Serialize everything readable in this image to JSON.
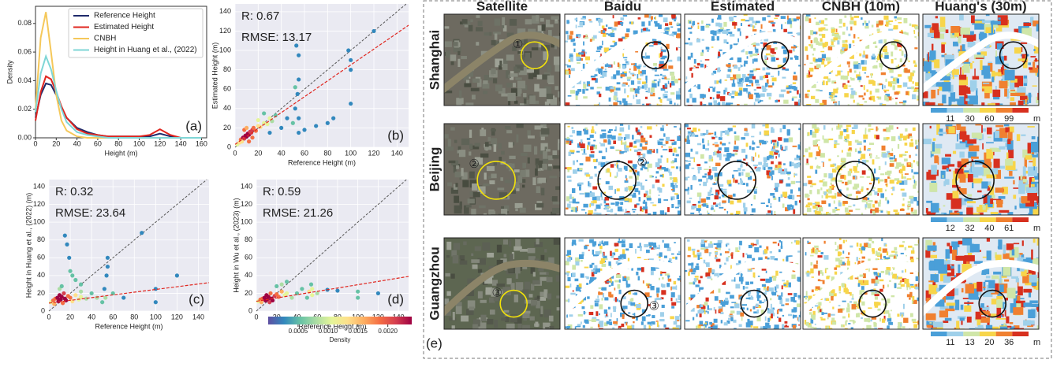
{
  "chart_data": [
    {
      "type": "line",
      "label": "(a)",
      "x_label": "Height (m)",
      "y_label": "Density",
      "x": [
        0,
        5,
        10,
        15,
        20,
        25,
        30,
        40,
        50,
        60,
        70,
        80,
        90,
        100,
        110,
        120,
        130,
        140,
        150,
        160
      ],
      "series": [
        {
          "name": "Reference Height",
          "color": "#1f2a6b",
          "values": [
            0.014,
            0.03,
            0.038,
            0.037,
            0.03,
            0.021,
            0.014,
            0.007,
            0.004,
            0.002,
            0.001,
            0.001,
            0.001,
            0.001,
            0.001,
            0.003,
            0.001,
            0,
            0,
            0
          ]
        },
        {
          "name": "Estimated Height",
          "color": "#e0261f",
          "values": [
            0.012,
            0.032,
            0.043,
            0.041,
            0.032,
            0.022,
            0.014,
            0.006,
            0.003,
            0.002,
            0.001,
            0.001,
            0.001,
            0.001,
            0.002,
            0.006,
            0.002,
            0,
            0,
            0
          ]
        },
        {
          "name": "CNBH",
          "color": "#f5c85a",
          "values": [
            0.02,
            0.07,
            0.088,
            0.06,
            0.03,
            0.012,
            0.005,
            0.001,
            0,
            0,
            0,
            0,
            0,
            0,
            0,
            0,
            0,
            0,
            0,
            0
          ]
        },
        {
          "name": "Height in Huang et al., (2022)",
          "color": "#7fd6d6",
          "values": [
            0.018,
            0.045,
            0.057,
            0.048,
            0.033,
            0.02,
            0.011,
            0.004,
            0.002,
            0.001,
            0,
            0,
            0,
            0,
            0,
            0,
            0,
            0,
            0,
            0
          ]
        }
      ],
      "xlim": [
        0,
        165
      ],
      "xticks": [
        0,
        20,
        40,
        60,
        80,
        100,
        120,
        140,
        160
      ],
      "ylim": [
        0,
        0.092
      ],
      "yticks": [
        {
          "value": 0,
          "label": "0.00"
        },
        {
          "value": 0.02,
          "label": "0.02"
        },
        {
          "value": 0.04,
          "label": "0.04"
        },
        {
          "value": 0.06,
          "label": "0.06"
        },
        {
          "value": 0.08,
          "label": "0.08"
        }
      ],
      "legend": "upper right"
    },
    {
      "type": "scatter",
      "label": "(b)",
      "x_label": "Reference Height (m)",
      "y_label": "Estimated Height (m)",
      "annotations": [
        "R: 0.67",
        "RMSE: 13.17"
      ],
      "x": [
        2,
        4,
        5,
        6,
        7,
        8,
        9,
        10,
        11,
        12,
        13,
        14,
        15,
        16,
        18,
        20,
        22,
        25,
        28,
        30,
        32,
        35,
        8,
        10,
        12,
        15,
        20,
        25,
        50,
        52,
        54,
        55,
        55,
        53,
        55,
        40,
        45,
        60,
        70,
        80,
        100,
        100,
        98,
        100,
        120,
        85,
        55,
        30,
        52
      ],
      "y": [
        3,
        5,
        8,
        6,
        10,
        9,
        12,
        11,
        14,
        13,
        16,
        15,
        18,
        20,
        17,
        22,
        21,
        25,
        24,
        30,
        27,
        33,
        18,
        20,
        6,
        10,
        28,
        35,
        25,
        40,
        55,
        70,
        95,
        105,
        30,
        20,
        30,
        18,
        22,
        25,
        80,
        90,
        100,
        45,
        120,
        30,
        15,
        15,
        62
      ],
      "fit_line": {
        "color": "#e0261f",
        "x": [
          0,
          150
        ],
        "y": [
          3,
          126
        ]
      },
      "xlim": [
        0,
        150
      ],
      "xticks": [
        0,
        20,
        40,
        60,
        80,
        100,
        120,
        140
      ],
      "ylim": [
        0,
        148
      ],
      "yticks": [
        0,
        20,
        40,
        60,
        80,
        100,
        120,
        140
      ],
      "grid": true
    },
    {
      "type": "scatter",
      "label": "(c)",
      "x_label": "Reference Height (m)",
      "y_label": "Height in Huang et al., (2022) (m)",
      "annotations": [
        "R: 0.32",
        "RMSE: 23.64"
      ],
      "x": [
        2,
        4,
        5,
        6,
        8,
        9,
        10,
        11,
        12,
        13,
        14,
        15,
        16,
        18,
        20,
        22,
        25,
        28,
        30,
        35,
        15,
        17,
        19,
        20,
        22,
        25,
        30,
        10,
        12,
        50,
        52,
        54,
        55,
        55,
        53,
        40,
        45,
        60,
        87,
        100,
        100,
        120,
        70,
        30
      ],
      "y": [
        10,
        12,
        8,
        14,
        15,
        11,
        18,
        13,
        16,
        9,
        20,
        14,
        12,
        17,
        15,
        11,
        18,
        13,
        16,
        14,
        85,
        75,
        60,
        45,
        40,
        35,
        30,
        25,
        28,
        10,
        25,
        40,
        50,
        60,
        15,
        20,
        15,
        20,
        88,
        25,
        10,
        40,
        15,
        22
      ],
      "fit_line": {
        "color": "#e0261f",
        "x": [
          0,
          150
        ],
        "y": [
          9,
          32
        ]
      },
      "xlim": [
        0,
        150
      ],
      "xticks": [
        0,
        20,
        40,
        60,
        80,
        100,
        120,
        140
      ],
      "ylim": [
        0,
        148
      ],
      "yticks": [
        0,
        20,
        40,
        60,
        80,
        100,
        120,
        140
      ],
      "grid": true
    },
    {
      "type": "scatter",
      "label": "(d)",
      "x_label": "Reference Height (m)",
      "y_label": "Height in Wu et al., (2023) (m)",
      "annotations": [
        "R: 0.59",
        "RMSE: 21.26"
      ],
      "x": [
        2,
        4,
        5,
        6,
        8,
        9,
        10,
        11,
        12,
        13,
        14,
        15,
        16,
        18,
        20,
        22,
        25,
        28,
        30,
        35,
        40,
        45,
        50,
        52,
        54,
        55,
        55,
        60,
        70,
        80,
        100,
        100,
        120,
        30,
        25,
        20
      ],
      "y": [
        11,
        13,
        10,
        14,
        15,
        12,
        18,
        13,
        16,
        10,
        20,
        14,
        12,
        17,
        19,
        16,
        22,
        18,
        20,
        15,
        20,
        25,
        15,
        22,
        30,
        25,
        18,
        20,
        24,
        23,
        22,
        15,
        20,
        33,
        30,
        28
      ],
      "fit_line": {
        "color": "#e0261f",
        "x": [
          0,
          150
        ],
        "y": [
          11,
          39
        ]
      },
      "xlim": [
        0,
        150
      ],
      "xticks": [
        0,
        20,
        40,
        60,
        80,
        100,
        120,
        140
      ],
      "ylim": [
        0,
        148
      ],
      "yticks": [
        0,
        20,
        40,
        60,
        80,
        100,
        120,
        140
      ],
      "grid": true
    },
    {
      "type": "colorbar",
      "label": "Density",
      "colors": [
        "#5e4fa2",
        "#3288bd",
        "#66c2a5",
        "#abdda4",
        "#e6f598",
        "#fee08b",
        "#fdae61",
        "#f46d43",
        "#d53e4f",
        "#9e0142"
      ],
      "xlim": [
        0,
        0.0024
      ],
      "xticks": [
        0.0005,
        {
          "value": 0.001,
          "label": "0.0010"
        },
        {
          "value": 0.0015,
          "label": "0.0015"
        },
        {
          "value": 0.002,
          "label": "0.0020"
        }
      ]
    }
  ],
  "map_panel": {
    "label": "(e)",
    "columns": [
      "Satellite",
      "Baidu",
      "Estimated",
      "CNBH (10m)",
      "Huang's (30m)"
    ],
    "column_colors": [
      "#000000",
      "#000000",
      "#e0261f",
      "#000000",
      "#000000"
    ],
    "legend_colors": [
      "#4a9fd8",
      "#9fd0ea",
      "#cfe6a8",
      "#f7d54a",
      "#f08030",
      "#d7301f"
    ],
    "unit": "m",
    "rows": [
      {
        "name": "Shanghai",
        "marker": "①",
        "legend_ticks": [
          11,
          30,
          60,
          99
        ]
      },
      {
        "name": "Beijing",
        "marker": "②",
        "legend_ticks": [
          12,
          32,
          40,
          61
        ]
      },
      {
        "name": "Guangzhou",
        "marker": "③",
        "legend_ticks": [
          11,
          13,
          20,
          36
        ]
      }
    ]
  }
}
